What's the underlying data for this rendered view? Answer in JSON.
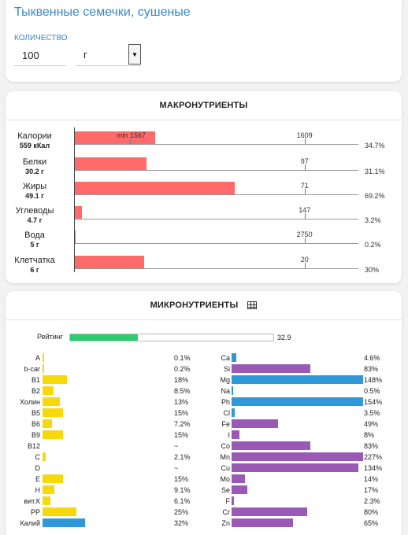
{
  "product": {
    "title": "Тыквенные семечки, сушеные",
    "quantity_label": "КОЛИЧЕСТВО",
    "quantity_value": "100",
    "unit_value": "г"
  },
  "macro": {
    "header": "МАКРОНУТРИЕНТЫ",
    "min_label": "min 1567",
    "rows": [
      {
        "name": "Калории",
        "amount": "559 кКал",
        "target": "1609",
        "pct": "34.7%",
        "fill": 0.347
      },
      {
        "name": "Белки",
        "amount": "30.2 г",
        "target": "97",
        "pct": "31.1%",
        "fill": 0.311
      },
      {
        "name": "Жиры",
        "amount": "49.1 г",
        "target": "71",
        "pct": "69.2%",
        "fill": 0.692
      },
      {
        "name": "Углеводы",
        "amount": "4.7 г",
        "target": "147",
        "pct": "3.2%",
        "fill": 0.032
      },
      {
        "name": "Вода",
        "amount": "5 г",
        "target": "2750",
        "pct": "0.2%",
        "fill": 0.002
      },
      {
        "name": "Клетчатка",
        "amount": "6 г",
        "target": "20",
        "pct": "30%",
        "fill": 0.3
      }
    ]
  },
  "micro": {
    "header": "МИКРОНУТРИЕНТЫ",
    "rating_label": "Рейтинг",
    "rating_value": "32.9",
    "rating_fill": 0.329,
    "vitamins": [
      {
        "name": "A",
        "pct": "0.1%",
        "fill": 0.001,
        "color": "yellow"
      },
      {
        "name": "b-car",
        "pct": "0.2%",
        "fill": 0.002,
        "color": "yellow"
      },
      {
        "name": "B1",
        "pct": "18%",
        "fill": 0.18,
        "color": "yellow"
      },
      {
        "name": "B2",
        "pct": "8.5%",
        "fill": 0.085,
        "color": "yellow"
      },
      {
        "name": "Холин",
        "pct": "13%",
        "fill": 0.13,
        "color": "yellow"
      },
      {
        "name": "B5",
        "pct": "15%",
        "fill": 0.15,
        "color": "yellow"
      },
      {
        "name": "B6",
        "pct": "7.2%",
        "fill": 0.072,
        "color": "yellow"
      },
      {
        "name": "B9",
        "pct": "15%",
        "fill": 0.15,
        "color": "yellow"
      },
      {
        "name": "B12",
        "pct": "~",
        "fill": 0,
        "color": "yellow"
      },
      {
        "name": "C",
        "pct": "2.1%",
        "fill": 0.021,
        "color": "yellow"
      },
      {
        "name": "D",
        "pct": "~",
        "fill": 0,
        "color": "yellow"
      },
      {
        "name": "E",
        "pct": "15%",
        "fill": 0.15,
        "color": "yellow"
      },
      {
        "name": "H",
        "pct": "9.1%",
        "fill": 0.091,
        "color": "yellow"
      },
      {
        "name": "вит.К",
        "pct": "6.1%",
        "fill": 0.061,
        "color": "yellow"
      },
      {
        "name": "PP",
        "pct": "25%",
        "fill": 0.25,
        "color": "yellow"
      },
      {
        "name": "Калий",
        "pct": "32%",
        "fill": 0.32,
        "color": "blue"
      }
    ],
    "minerals": [
      {
        "name": "Ca",
        "pct": "4.6%",
        "fill": 0.046,
        "color": "blue"
      },
      {
        "name": "Si",
        "pct": "83%",
        "fill": 0.83,
        "color": "purple"
      },
      {
        "name": "Mg",
        "pct": "148%",
        "fill": 1.48,
        "color": "blue"
      },
      {
        "name": "Na",
        "pct": "0.5%",
        "fill": 0.005,
        "color": "blue"
      },
      {
        "name": "Ph",
        "pct": "154%",
        "fill": 1.54,
        "color": "blue"
      },
      {
        "name": "Cl",
        "pct": "3.5%",
        "fill": 0.035,
        "color": "blue"
      },
      {
        "name": "Fe",
        "pct": "49%",
        "fill": 0.49,
        "color": "purple"
      },
      {
        "name": "I",
        "pct": "8%",
        "fill": 0.08,
        "color": "purple"
      },
      {
        "name": "Co",
        "pct": "83%",
        "fill": 0.83,
        "color": "purple"
      },
      {
        "name": "Mn",
        "pct": "227%",
        "fill": 2.27,
        "color": "purple"
      },
      {
        "name": "Cu",
        "pct": "134%",
        "fill": 1.34,
        "color": "purple"
      },
      {
        "name": "Mo",
        "pct": "14%",
        "fill": 0.14,
        "color": "purple"
      },
      {
        "name": "Se",
        "pct": "17%",
        "fill": 0.17,
        "color": "purple"
      },
      {
        "name": "F",
        "pct": "2.3%",
        "fill": 0.023,
        "color": "purple"
      },
      {
        "name": "Cr",
        "pct": "80%",
        "fill": 0.8,
        "color": "purple"
      },
      {
        "name": "Zn",
        "pct": "65%",
        "fill": 0.65,
        "color": "purple"
      }
    ]
  }
}
